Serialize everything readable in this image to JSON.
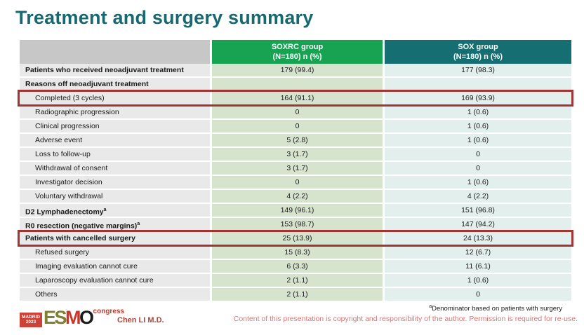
{
  "title": "Treatment and surgery summary",
  "table": {
    "columns": [
      {
        "name": "SOXRC group",
        "sub": "(N=180)  n (%)"
      },
      {
        "name": "SOX group",
        "sub": "(N=180)  n (%)"
      }
    ],
    "rows": [
      {
        "label": "Patients who received neoadjuvant treatment",
        "bold": true,
        "indent": false,
        "highlight": false,
        "soxrc": "179 (99.4)",
        "sox": "177 (98.3)"
      },
      {
        "label": "Reasons off neoadjuvant treatment",
        "bold": true,
        "indent": false,
        "highlight": false,
        "soxrc": "",
        "sox": ""
      },
      {
        "label": "Completed (3 cycles)",
        "bold": false,
        "indent": true,
        "highlight": true,
        "soxrc": "164 (91.1)",
        "sox": "169 (93.9)"
      },
      {
        "label": "Radiographic progression",
        "bold": false,
        "indent": true,
        "highlight": false,
        "soxrc": "0",
        "sox": "1 (0.6)"
      },
      {
        "label": "Clinical progression",
        "bold": false,
        "indent": true,
        "highlight": false,
        "soxrc": "0",
        "sox": "1 (0.6)"
      },
      {
        "label": "Adverse event",
        "bold": false,
        "indent": true,
        "highlight": false,
        "soxrc": "5 (2.8)",
        "sox": "1 (0.6)"
      },
      {
        "label": "Loss to follow-up",
        "bold": false,
        "indent": true,
        "highlight": false,
        "soxrc": "3 (1.7)",
        "sox": "0"
      },
      {
        "label": "Withdrawal of consent",
        "bold": false,
        "indent": true,
        "highlight": false,
        "soxrc": "3 (1.7)",
        "sox": "0"
      },
      {
        "label": "Investigator decision",
        "bold": false,
        "indent": true,
        "highlight": false,
        "soxrc": "0",
        "sox": "1 (0.6)"
      },
      {
        "label": "Voluntary withdrawal",
        "bold": false,
        "indent": true,
        "highlight": false,
        "soxrc": "4 (2.2)",
        "sox": "4 (2.2)"
      },
      {
        "label": "D2 Lymphadenectomy",
        "sup": "a",
        "bold": true,
        "indent": false,
        "highlight": false,
        "soxrc": "149 (96.1)",
        "sox": "151 (96.8)"
      },
      {
        "label": "R0 resection (negative margins)",
        "sup": "a",
        "bold": true,
        "indent": false,
        "highlight": false,
        "soxrc": "153 (98.7)",
        "sox": "147 (94.2)"
      },
      {
        "label": "Patients with cancelled surgery",
        "bold": true,
        "indent": false,
        "highlight": true,
        "soxrc": "25 (13.9)",
        "sox": "24 (13.3)"
      },
      {
        "label": "Refused surgery",
        "bold": false,
        "indent": true,
        "highlight": false,
        "soxrc": "15 (8.3)",
        "sox": "12 (6.7)"
      },
      {
        "label": "Imaging evaluation cannot cure",
        "bold": false,
        "indent": true,
        "highlight": false,
        "soxrc": "6 (3.3)",
        "sox": "11 (6.1)"
      },
      {
        "label": "Laparoscopy evaluation cannot cure",
        "bold": false,
        "indent": true,
        "highlight": false,
        "soxrc": "2 (1.1)",
        "sox": "1 (0.6)"
      },
      {
        "label": "Others",
        "bold": false,
        "indent": true,
        "highlight": false,
        "soxrc": "2 (1.1)",
        "sox": "0"
      }
    ]
  },
  "footer": {
    "logo": {
      "city": "MADRID",
      "year": "2023",
      "esmo_es": "ES",
      "esmo_m": "M",
      "esmo_o": "O",
      "congress": "congress"
    },
    "author": "Chen LI M.D.",
    "footnote_marker": "a",
    "footnote": "Denominator based on patients with surgery",
    "copyright": "Content of this presentation is copyright and responsibility of the author. Permission is required for re-use."
  },
  "colors": {
    "title": "#17696f",
    "header_soxrc": "#17a351",
    "header_sox": "#146e72",
    "header_label_bg": "#c7c7c7",
    "cell_label_bg": "#e9e9e9",
    "cell_soxrc_bg": "#d6e3cd",
    "cell_sox_bg": "#e2efed",
    "highlight_border": "#a23434",
    "copyright_text": "#d97575",
    "author_text": "#a8473a",
    "logo_red": "#cd4136",
    "logo_olive": "#7f812e"
  }
}
